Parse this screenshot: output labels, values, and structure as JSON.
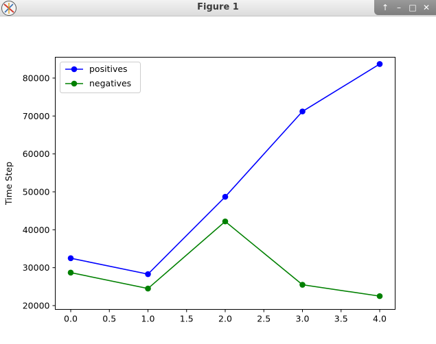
{
  "window": {
    "title": "Figure 1",
    "icons": [
      "app-icon",
      "up-icon",
      "minimize-icon",
      "maximize-icon",
      "close-icon"
    ]
  },
  "chart_data": {
    "type": "line",
    "title": "",
    "xlabel": "",
    "ylabel": "Time Step",
    "x": [
      0,
      1,
      2,
      3,
      4
    ],
    "xlim": [
      -0.2,
      4.2
    ],
    "ylim": [
      19000,
      85500
    ],
    "xticks": [
      "0.0",
      "0.5",
      "1.0",
      "1.5",
      "2.0",
      "2.5",
      "3.0",
      "3.5",
      "4.0"
    ],
    "yticks": [
      "20000",
      "30000",
      "40000",
      "50000",
      "60000",
      "70000",
      "80000"
    ],
    "grid": false,
    "legend_position": "top-left",
    "series": [
      {
        "name": "positives",
        "color": "#0000ff",
        "marker": "circle",
        "values": [
          32500,
          28300,
          48700,
          71200,
          83700
        ]
      },
      {
        "name": "negatives",
        "color": "#008000",
        "marker": "circle",
        "values": [
          28700,
          24500,
          42200,
          25500,
          22500
        ]
      }
    ]
  }
}
